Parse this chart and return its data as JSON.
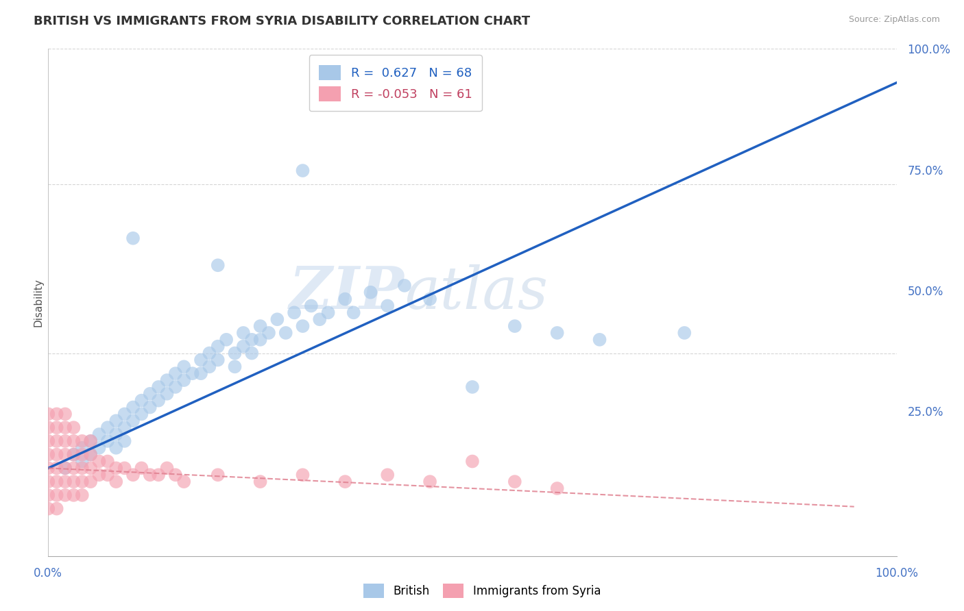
{
  "title": "BRITISH VS IMMIGRANTS FROM SYRIA DISABILITY CORRELATION CHART",
  "source": "Source: ZipAtlas.com",
  "ylabel": "Disability",
  "british_R": "0.627",
  "british_N": "68",
  "syria_R": "-0.053",
  "syria_N": "61",
  "british_color": "#a8c8e8",
  "syria_color": "#f4a0b0",
  "british_line_color": "#2060c0",
  "syria_line_color": "#e08090",
  "background_color": "#ffffff",
  "grid_color": "#cccccc",
  "watermark_zip": "ZIP",
  "watermark_atlas": "atlas",
  "british_points": [
    [
      0.02,
      0.08
    ],
    [
      0.03,
      0.1
    ],
    [
      0.04,
      0.11
    ],
    [
      0.04,
      0.09
    ],
    [
      0.05,
      0.12
    ],
    [
      0.05,
      0.1
    ],
    [
      0.06,
      0.13
    ],
    [
      0.06,
      0.11
    ],
    [
      0.07,
      0.14
    ],
    [
      0.07,
      0.12
    ],
    [
      0.08,
      0.15
    ],
    [
      0.08,
      0.13
    ],
    [
      0.08,
      0.11
    ],
    [
      0.09,
      0.16
    ],
    [
      0.09,
      0.14
    ],
    [
      0.09,
      0.12
    ],
    [
      0.1,
      0.17
    ],
    [
      0.1,
      0.15
    ],
    [
      0.11,
      0.18
    ],
    [
      0.11,
      0.16
    ],
    [
      0.12,
      0.19
    ],
    [
      0.12,
      0.17
    ],
    [
      0.13,
      0.2
    ],
    [
      0.13,
      0.18
    ],
    [
      0.14,
      0.21
    ],
    [
      0.14,
      0.19
    ],
    [
      0.15,
      0.22
    ],
    [
      0.15,
      0.2
    ],
    [
      0.16,
      0.23
    ],
    [
      0.16,
      0.21
    ],
    [
      0.17,
      0.22
    ],
    [
      0.18,
      0.24
    ],
    [
      0.18,
      0.22
    ],
    [
      0.19,
      0.25
    ],
    [
      0.19,
      0.23
    ],
    [
      0.2,
      0.26
    ],
    [
      0.2,
      0.24
    ],
    [
      0.21,
      0.27
    ],
    [
      0.22,
      0.25
    ],
    [
      0.22,
      0.23
    ],
    [
      0.23,
      0.28
    ],
    [
      0.23,
      0.26
    ],
    [
      0.24,
      0.27
    ],
    [
      0.24,
      0.25
    ],
    [
      0.25,
      0.29
    ],
    [
      0.25,
      0.27
    ],
    [
      0.26,
      0.28
    ],
    [
      0.27,
      0.3
    ],
    [
      0.28,
      0.28
    ],
    [
      0.29,
      0.31
    ],
    [
      0.3,
      0.29
    ],
    [
      0.31,
      0.32
    ],
    [
      0.32,
      0.3
    ],
    [
      0.33,
      0.31
    ],
    [
      0.35,
      0.33
    ],
    [
      0.36,
      0.31
    ],
    [
      0.38,
      0.34
    ],
    [
      0.4,
      0.32
    ],
    [
      0.42,
      0.35
    ],
    [
      0.45,
      0.33
    ],
    [
      0.5,
      0.2
    ],
    [
      0.55,
      0.29
    ],
    [
      0.6,
      0.28
    ],
    [
      0.65,
      0.27
    ],
    [
      0.1,
      0.42
    ],
    [
      0.2,
      0.38
    ],
    [
      0.3,
      0.52
    ],
    [
      0.75,
      0.28
    ]
  ],
  "syria_points": [
    [
      0.0,
      0.1
    ],
    [
      0.0,
      0.08
    ],
    [
      0.0,
      0.06
    ],
    [
      0.0,
      0.12
    ],
    [
      0.0,
      0.14
    ],
    [
      0.0,
      0.04
    ],
    [
      0.0,
      0.16
    ],
    [
      0.0,
      0.02
    ],
    [
      0.01,
      0.1
    ],
    [
      0.01,
      0.08
    ],
    [
      0.01,
      0.12
    ],
    [
      0.01,
      0.06
    ],
    [
      0.01,
      0.14
    ],
    [
      0.01,
      0.04
    ],
    [
      0.01,
      0.16
    ],
    [
      0.01,
      0.02
    ],
    [
      0.02,
      0.1
    ],
    [
      0.02,
      0.08
    ],
    [
      0.02,
      0.12
    ],
    [
      0.02,
      0.06
    ],
    [
      0.02,
      0.14
    ],
    [
      0.02,
      0.04
    ],
    [
      0.02,
      0.16
    ],
    [
      0.03,
      0.1
    ],
    [
      0.03,
      0.08
    ],
    [
      0.03,
      0.12
    ],
    [
      0.03,
      0.06
    ],
    [
      0.03,
      0.14
    ],
    [
      0.03,
      0.04
    ],
    [
      0.04,
      0.1
    ],
    [
      0.04,
      0.08
    ],
    [
      0.04,
      0.12
    ],
    [
      0.04,
      0.06
    ],
    [
      0.04,
      0.04
    ],
    [
      0.05,
      0.1
    ],
    [
      0.05,
      0.08
    ],
    [
      0.05,
      0.06
    ],
    [
      0.05,
      0.12
    ],
    [
      0.06,
      0.09
    ],
    [
      0.06,
      0.07
    ],
    [
      0.07,
      0.09
    ],
    [
      0.07,
      0.07
    ],
    [
      0.08,
      0.08
    ],
    [
      0.08,
      0.06
    ],
    [
      0.09,
      0.08
    ],
    [
      0.1,
      0.07
    ],
    [
      0.11,
      0.08
    ],
    [
      0.12,
      0.07
    ],
    [
      0.13,
      0.07
    ],
    [
      0.14,
      0.08
    ],
    [
      0.15,
      0.07
    ],
    [
      0.16,
      0.06
    ],
    [
      0.2,
      0.07
    ],
    [
      0.25,
      0.06
    ],
    [
      0.3,
      0.07
    ],
    [
      0.35,
      0.06
    ],
    [
      0.4,
      0.07
    ],
    [
      0.45,
      0.06
    ],
    [
      0.5,
      0.09
    ],
    [
      0.55,
      0.06
    ],
    [
      0.6,
      0.05
    ]
  ]
}
